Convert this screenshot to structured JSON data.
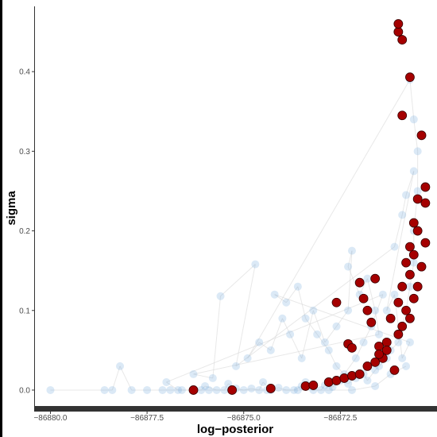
{
  "chart_data": {
    "type": "scatter",
    "xlabel": "log−posterior",
    "ylabel": "sigma",
    "xlim": [
      -86880.4,
      -86870.0
    ],
    "ylim": [
      -0.021,
      0.482
    ],
    "x_ticks": [
      {
        "value": -86880.0,
        "label": "−86880.0"
      },
      {
        "value": -86877.5,
        "label": "−86877.5"
      },
      {
        "value": -86875.0,
        "label": "−86875.0"
      },
      {
        "value": -86872.5,
        "label": "−86872.5"
      }
    ],
    "y_ticks": [
      {
        "value": 0.0,
        "label": "0.0"
      },
      {
        "value": 0.1,
        "label": "0.1"
      },
      {
        "value": 0.2,
        "label": "0.2"
      },
      {
        "value": 0.3,
        "label": "0.3"
      },
      {
        "value": 0.4,
        "label": "0.4"
      }
    ],
    "grid": false,
    "colors": {
      "draws": "#6fa8dc",
      "draws_line": "#d8d8d8",
      "divergent": "#a50000",
      "divergent_edge": "#3a0000",
      "axis_bar": "#333333"
    },
    "series": [
      {
        "role": "mcmc-draws",
        "points": [
          [
            -86880.0,
            0.0
          ],
          [
            -86878.6,
            0.0
          ],
          [
            -86878.4,
            0.0
          ],
          [
            -86878.2,
            0.03
          ],
          [
            -86877.9,
            0.0
          ],
          [
            -86877.5,
            0.0
          ],
          [
            -86877.1,
            0.0
          ],
          [
            -86876.9,
            0.0
          ],
          [
            -86876.6,
            0.0
          ],
          [
            -86876.3,
            0.0
          ],
          [
            -86876.1,
            0.0
          ],
          [
            -86876.0,
            0.005
          ],
          [
            -86875.7,
            0.0
          ],
          [
            -86875.5,
            0.0
          ],
          [
            -86875.4,
            0.008
          ],
          [
            -86875.2,
            0.002
          ],
          [
            -86875.0,
            0.0
          ],
          [
            -86874.8,
            0.002
          ],
          [
            -86874.6,
            0.0
          ],
          [
            -86874.5,
            0.01
          ],
          [
            -86874.3,
            0.0
          ],
          [
            -86874.1,
            0.003
          ],
          [
            -86873.9,
            0.0
          ],
          [
            -86873.7,
            0.0
          ],
          [
            -86873.5,
            0.005
          ],
          [
            -86873.4,
            0.01
          ],
          [
            -86873.2,
            0.0
          ],
          [
            -86873.0,
            0.0
          ],
          [
            -86872.9,
            0.006
          ],
          [
            -86872.7,
            0.004
          ],
          [
            -86872.5,
            0.012
          ],
          [
            -86872.3,
            0.008
          ],
          [
            -86872.1,
            0.015
          ],
          [
            -86871.9,
            0.02
          ],
          [
            -86871.8,
            0.012
          ],
          [
            -86871.6,
            0.025
          ],
          [
            -86871.5,
            0.03
          ],
          [
            -86871.3,
            0.04
          ],
          [
            -86871.2,
            0.05
          ],
          [
            -86871.0,
            0.06
          ],
          [
            -86870.9,
            0.08
          ],
          [
            -86870.8,
            0.1
          ],
          [
            -86870.7,
            0.13
          ],
          [
            -86870.6,
            0.16
          ],
          [
            -86870.6,
            0.2
          ],
          [
            -86870.5,
            0.25
          ],
          [
            -86870.5,
            0.3
          ],
          [
            -86870.6,
            0.34
          ],
          [
            -86870.7,
            0.39
          ],
          [
            -86874.9,
            0.04
          ],
          [
            -86874.6,
            0.06
          ],
          [
            -86874.3,
            0.05
          ],
          [
            -86874.0,
            0.09
          ],
          [
            -86873.8,
            0.07
          ],
          [
            -86873.5,
            0.04
          ],
          [
            -86873.2,
            0.1
          ],
          [
            -86872.9,
            0.06
          ],
          [
            -86872.6,
            0.08
          ],
          [
            -86872.3,
            0.1
          ],
          [
            -86872.2,
            0.175
          ],
          [
            -86872.3,
            0.155
          ],
          [
            -86872.0,
            0.12
          ],
          [
            -86871.8,
            0.14
          ],
          [
            -86871.6,
            0.1
          ],
          [
            -86871.5,
            0.07
          ],
          [
            -86876.3,
            0.02
          ],
          [
            -86875.8,
            0.015
          ],
          [
            -86875.6,
            0.118
          ],
          [
            -86874.7,
            0.158
          ],
          [
            -86875.2,
            0.03
          ],
          [
            -86871.1,
            0.18
          ],
          [
            -86870.9,
            0.22
          ],
          [
            -86870.8,
            0.245
          ],
          [
            -86870.6,
            0.275
          ],
          [
            -86871.3,
            0.1
          ],
          [
            -86871.1,
            0.12
          ],
          [
            -86870.9,
            0.04
          ],
          [
            -86870.7,
            0.06
          ],
          [
            -86874.2,
            0.12
          ],
          [
            -86873.9,
            0.11
          ],
          [
            -86873.6,
            0.13
          ],
          [
            -86873.4,
            0.09
          ],
          [
            -86873.1,
            0.07
          ],
          [
            -86872.8,
            0.05
          ],
          [
            -86872.6,
            0.03
          ],
          [
            -86872.4,
            0.02
          ],
          [
            -86872.1,
            0.04
          ],
          [
            -86871.9,
            0.06
          ],
          [
            -86871.7,
            0.08
          ],
          [
            -86871.4,
            0.12
          ],
          [
            -86877.0,
            0.01
          ],
          [
            -86876.7,
            0.0
          ],
          [
            -86875.9,
            0.0
          ],
          [
            -86874.4,
            0.0
          ],
          [
            -86873.6,
            0.0
          ],
          [
            -86872.8,
            0.0
          ],
          [
            -86872.2,
            0.0
          ],
          [
            -86871.6,
            0.005
          ],
          [
            -86871.2,
            0.02
          ],
          [
            -86870.8,
            0.03
          ]
        ]
      },
      {
        "role": "divergent",
        "points": [
          [
            -86876.3,
            0.0
          ],
          [
            -86875.3,
            0.0
          ],
          [
            -86874.3,
            0.002
          ],
          [
            -86873.4,
            0.005
          ],
          [
            -86873.2,
            0.006
          ],
          [
            -86872.8,
            0.01
          ],
          [
            -86872.6,
            0.012
          ],
          [
            -86872.4,
            0.015
          ],
          [
            -86872.2,
            0.018
          ],
          [
            -86872.0,
            0.02
          ],
          [
            -86871.8,
            0.03
          ],
          [
            -86871.6,
            0.035
          ],
          [
            -86871.4,
            0.04
          ],
          [
            -86871.5,
            0.055
          ],
          [
            -86871.3,
            0.06
          ],
          [
            -86871.0,
            0.07
          ],
          [
            -86870.9,
            0.08
          ],
          [
            -86870.7,
            0.09
          ],
          [
            -86870.8,
            0.1
          ],
          [
            -86870.6,
            0.115
          ],
          [
            -86870.5,
            0.13
          ],
          [
            -86870.7,
            0.145
          ],
          [
            -86870.4,
            0.155
          ],
          [
            -86870.6,
            0.17
          ],
          [
            -86870.3,
            0.185
          ],
          [
            -86870.5,
            0.2
          ],
          [
            -86870.3,
            0.235
          ],
          [
            -86870.3,
            0.255
          ],
          [
            -86870.4,
            0.32
          ],
          [
            -86870.9,
            0.345
          ],
          [
            -86870.7,
            0.393
          ],
          [
            -86870.9,
            0.44
          ],
          [
            -86871.0,
            0.45
          ],
          [
            -86871.0,
            0.46
          ],
          [
            -86872.0,
            0.135
          ],
          [
            -86871.9,
            0.115
          ],
          [
            -86871.8,
            0.1
          ],
          [
            -86871.7,
            0.085
          ],
          [
            -86872.6,
            0.11
          ],
          [
            -86872.3,
            0.058
          ],
          [
            -86872.2,
            0.053
          ],
          [
            -86871.6,
            0.14
          ],
          [
            -86871.2,
            0.09
          ],
          [
            -86871.0,
            0.11
          ],
          [
            -86870.9,
            0.13
          ],
          [
            -86870.8,
            0.16
          ],
          [
            -86870.7,
            0.18
          ],
          [
            -86870.6,
            0.21
          ],
          [
            -86870.5,
            0.24
          ],
          [
            -86871.1,
            0.025
          ],
          [
            -86871.3,
            0.05
          ],
          [
            -86871.5,
            0.045
          ]
        ]
      }
    ]
  }
}
